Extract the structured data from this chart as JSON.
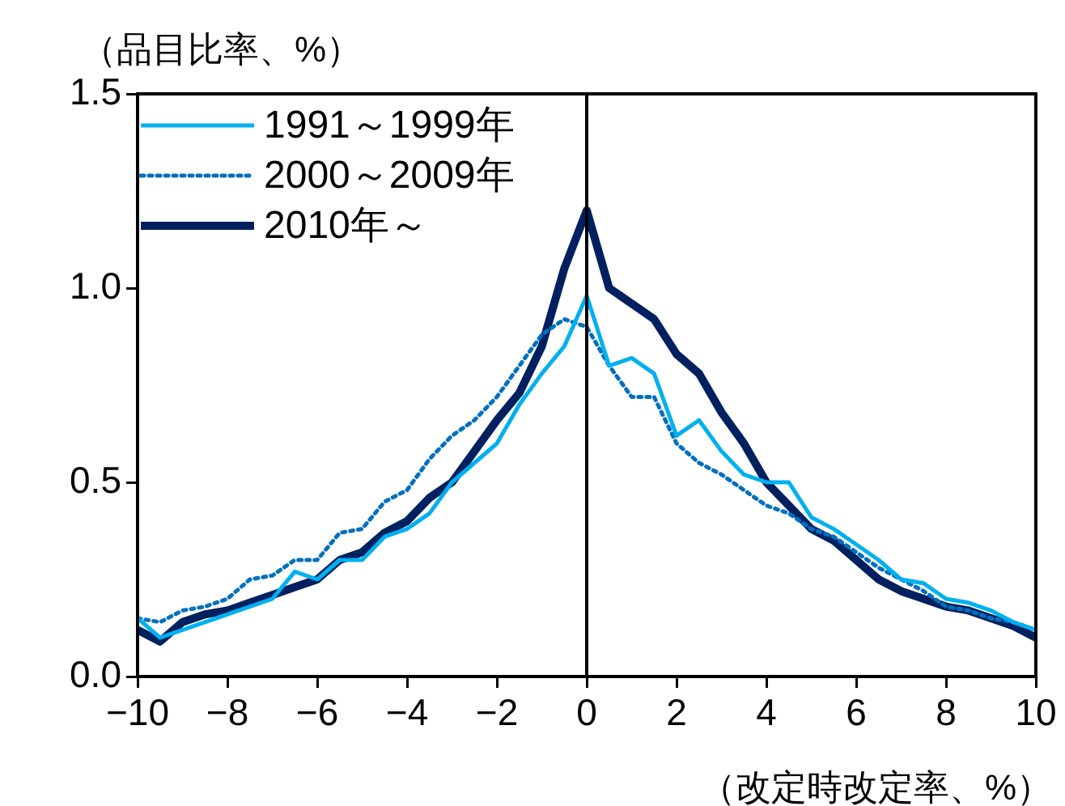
{
  "chart_data": {
    "type": "line",
    "xlabel": "（改定時改定率、%）",
    "ylabel": "（品目比率、%）",
    "x": [
      -10,
      -9.5,
      -9,
      -8.5,
      -8,
      -7.5,
      -7,
      -6.5,
      -6,
      -5.5,
      -5,
      -4.5,
      -4,
      -3.5,
      -3,
      -2.5,
      -2,
      -1.5,
      -1,
      -0.5,
      0,
      0.5,
      1,
      1.5,
      2,
      2.5,
      3,
      3.5,
      4,
      4.5,
      5,
      5.5,
      6,
      6.5,
      7,
      7.5,
      8,
      8.5,
      9,
      9.5,
      10
    ],
    "series": [
      {
        "name": "1991～1999年",
        "color": "#00b0f0",
        "line_style": "solid",
        "values": [
          0.15,
          0.1,
          0.12,
          0.14,
          0.16,
          0.18,
          0.2,
          0.27,
          0.25,
          0.3,
          0.3,
          0.36,
          0.38,
          0.42,
          0.5,
          0.55,
          0.6,
          0.7,
          0.78,
          0.85,
          0.98,
          0.8,
          0.82,
          0.78,
          0.62,
          0.66,
          0.58,
          0.52,
          0.5,
          0.5,
          0.41,
          0.38,
          0.34,
          0.3,
          0.25,
          0.24,
          0.2,
          0.19,
          0.17,
          0.14,
          0.12
        ]
      },
      {
        "name": "2000～2009年",
        "color": "#0070c0",
        "line_style": "dotted",
        "values": [
          0.15,
          0.14,
          0.17,
          0.18,
          0.2,
          0.25,
          0.26,
          0.3,
          0.3,
          0.37,
          0.38,
          0.45,
          0.48,
          0.56,
          0.62,
          0.66,
          0.72,
          0.8,
          0.88,
          0.92,
          0.9,
          0.8,
          0.72,
          0.72,
          0.6,
          0.55,
          0.52,
          0.48,
          0.44,
          0.42,
          0.38,
          0.36,
          0.32,
          0.28,
          0.25,
          0.22,
          0.18,
          0.17,
          0.15,
          0.14,
          0.12
        ]
      },
      {
        "name": "2010年～",
        "color": "#002060",
        "line_style": "solid",
        "values": [
          0.12,
          0.09,
          0.14,
          0.16,
          0.17,
          0.19,
          0.21,
          0.23,
          0.25,
          0.3,
          0.32,
          0.37,
          0.4,
          0.46,
          0.5,
          0.58,
          0.66,
          0.73,
          0.85,
          1.05,
          1.2,
          1.0,
          0.96,
          0.92,
          0.83,
          0.78,
          0.68,
          0.6,
          0.5,
          0.44,
          0.38,
          0.35,
          0.3,
          0.25,
          0.22,
          0.2,
          0.18,
          0.17,
          0.15,
          0.13,
          0.1
        ]
      }
    ],
    "xlim": [
      -10,
      10
    ],
    "xticks": [
      {
        "value": -10,
        "label": "−10"
      },
      {
        "value": -8,
        "label": "−8"
      },
      {
        "value": -6,
        "label": "−6"
      },
      {
        "value": -4,
        "label": "−4"
      },
      {
        "value": -2,
        "label": "−2"
      },
      0,
      2,
      4,
      6,
      8,
      10
    ],
    "ylim": [
      0,
      1.5
    ],
    "yticks": [
      {
        "value": 0,
        "label": "0.0"
      },
      0.5,
      {
        "value": 1,
        "label": "1.0"
      },
      1.5
    ],
    "ref_lines": [
      {
        "axis": "x",
        "value": 0,
        "color": "#000000"
      }
    ],
    "grid": false,
    "legend": "top left",
    "marker": "none"
  }
}
